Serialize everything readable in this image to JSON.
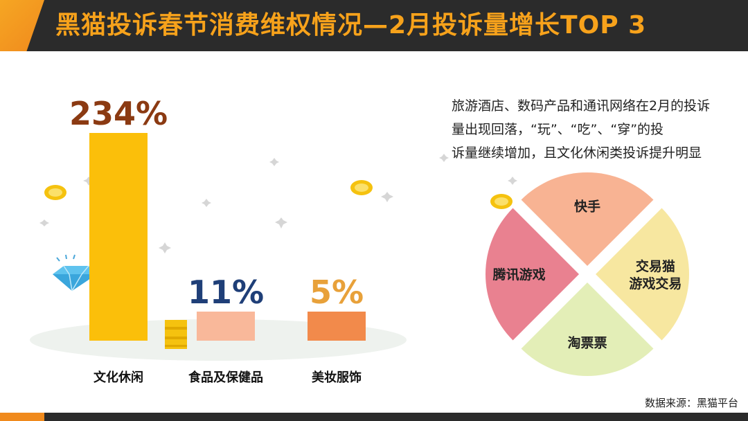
{
  "header": {
    "title": "黑猫投诉春节消费维权情况—2月投诉量增长TOP 3"
  },
  "chart_data": [
    {
      "type": "bar",
      "categories": [
        "文化休闲",
        "食品及保健品",
        "美妆服饰"
      ],
      "values": [
        234,
        11,
        5
      ],
      "value_labels": [
        "234%",
        "11%",
        "5%"
      ],
      "colors": [
        "#fbbf0a",
        "#f9b89a",
        "#f28a4b"
      ],
      "label_colors": [
        "#8b3a12",
        "#1f3f78",
        "#e8a13a"
      ]
    },
    {
      "type": "pie",
      "segments": [
        "快手",
        "交易猫\n游戏交易",
        "淘票票",
        "腾讯游戏"
      ],
      "values": [
        25,
        25,
        25,
        25
      ],
      "colors": [
        "#f8b393",
        "#f7e7a0",
        "#e3eeb7",
        "#e98190"
      ]
    }
  ],
  "description": {
    "lines": [
      "旅游酒店、数码产品和通讯网络在2月的投诉",
      "量出现回落，“玩”、“吃”、“穿”的投",
      "诉量继续增加，且文化休闲类投诉提升明显"
    ]
  },
  "footer": {
    "source": "数据来源：黑猫平台"
  },
  "decor": {
    "coin_color": "#f5c20f",
    "diamond_color": "#5fc3ee",
    "sparkle_color": "#d8d8d8"
  }
}
